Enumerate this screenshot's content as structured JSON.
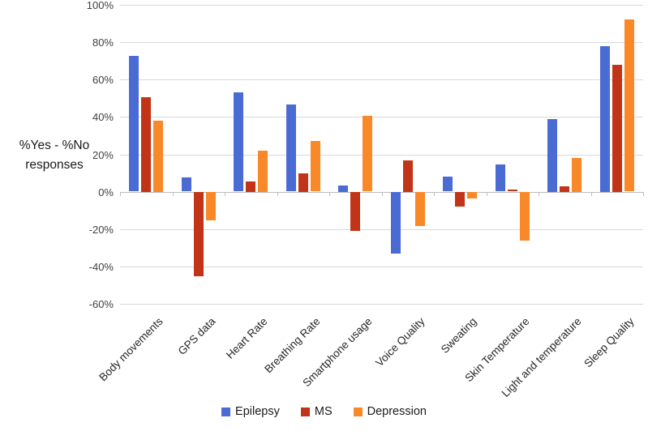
{
  "chart_data": {
    "type": "bar",
    "title": "",
    "ylabel_line1": "%Yes - %No",
    "ylabel_line2": "responses",
    "categories": [
      "Body movements",
      "GPS data",
      "Heart Rate",
      "Breathing Rate",
      "Smartphone usage",
      "Voice Quality",
      "Sweating",
      "Skin Temperature",
      "Light and temperature",
      "Sleep Quality"
    ],
    "series": [
      {
        "name": "Epilepsy",
        "color": "#4a6bd4",
        "values": [
          72.5,
          7.5,
          53,
          46.5,
          3.5,
          -33,
          8,
          14.5,
          39,
          78
        ]
      },
      {
        "name": "MS",
        "color": "#c23417",
        "values": [
          50.5,
          -45,
          5.5,
          10,
          -21,
          17,
          -8,
          1,
          3,
          68
        ]
      },
      {
        "name": "Depression",
        "color": "#f98829",
        "values": [
          38,
          -15,
          22,
          27,
          40.5,
          -18,
          -3.5,
          -26,
          18,
          92
        ]
      }
    ],
    "ylim": [
      -60,
      100
    ],
    "ytick_step": 20,
    "ytick_labels": [
      "100%",
      "80%",
      "60%",
      "40%",
      "20%",
      "0%",
      "-20%",
      "-40%",
      "-60%"
    ],
    "grid": "horizontal-on",
    "legend_position": "bottom",
    "colors": {
      "gridline": "#d9d9d9",
      "zero_axis": "#bdbdbd",
      "tick_text": "#404040",
      "label_text": "#1a1a1a"
    }
  }
}
